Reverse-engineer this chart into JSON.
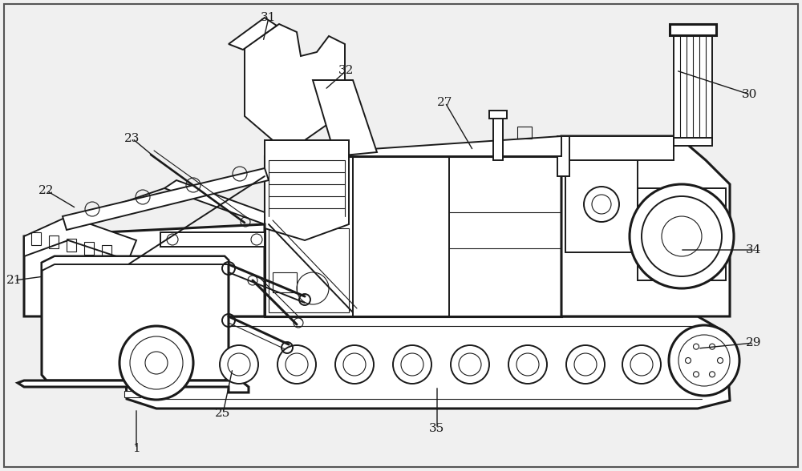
{
  "bg_color": "#f0f0f0",
  "line_color": "#1a1a1a",
  "fig_width": 10.0,
  "fig_height": 5.88,
  "dpi": 100,
  "ann_data": [
    [
      "1",
      170,
      510,
      170,
      560
    ],
    [
      "21",
      55,
      345,
      18,
      350
    ],
    [
      "22",
      95,
      260,
      58,
      238
    ],
    [
      "23",
      195,
      198,
      165,
      173
    ],
    [
      "25",
      290,
      460,
      278,
      516
    ],
    [
      "27",
      590,
      188,
      555,
      128
    ],
    [
      "29",
      870,
      435,
      940,
      428
    ],
    [
      "30",
      843,
      88,
      935,
      118
    ],
    [
      "31",
      328,
      52,
      335,
      22
    ],
    [
      "32",
      405,
      112,
      432,
      88
    ],
    [
      "34",
      848,
      312,
      940,
      312
    ],
    [
      "35",
      545,
      482,
      545,
      535
    ]
  ]
}
